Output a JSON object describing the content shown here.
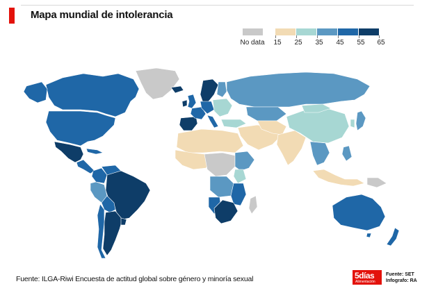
{
  "header": {
    "title": "Mapa mundial de intolerancia"
  },
  "legend": {
    "nodata_label": "No data",
    "nodata_color": "#c9c9c9",
    "bins": [
      {
        "from": "15",
        "to": "25",
        "color": "#f2dbb4"
      },
      {
        "from": "25",
        "to": "35",
        "color": "#a7d7d3"
      },
      {
        "from": "35",
        "to": "45",
        "color": "#5b98c2"
      },
      {
        "from": "45",
        "to": "55",
        "color": "#1f67a7"
      },
      {
        "from": "55",
        "to": "65",
        "color": "#0e3d68"
      }
    ],
    "ticks": [
      "15",
      "25",
      "35",
      "45",
      "55",
      "65"
    ]
  },
  "map": {
    "regions": [
      {
        "name": "greenland",
        "bin": "nodata"
      },
      {
        "name": "canada",
        "bin": "45-55"
      },
      {
        "name": "usa",
        "bin": "45-55"
      },
      {
        "name": "mexico",
        "bin": "55-65"
      },
      {
        "name": "central-america",
        "bin": "45-55"
      },
      {
        "name": "colombia",
        "bin": "45-55"
      },
      {
        "name": "venezuela",
        "bin": "45-55"
      },
      {
        "name": "peru",
        "bin": "35-45"
      },
      {
        "name": "brazil",
        "bin": "55-65"
      },
      {
        "name": "bolivia",
        "bin": "45-55"
      },
      {
        "name": "paraguay",
        "bin": "45-55"
      },
      {
        "name": "argentina",
        "bin": "55-65"
      },
      {
        "name": "chile",
        "bin": "45-55"
      },
      {
        "name": "uruguay",
        "bin": "55-65"
      },
      {
        "name": "iberia",
        "bin": "55-65"
      },
      {
        "name": "france",
        "bin": "45-55"
      },
      {
        "name": "western-europe",
        "bin": "45-55"
      },
      {
        "name": "uk",
        "bin": "45-55"
      },
      {
        "name": "ireland",
        "bin": "55-65"
      },
      {
        "name": "scandinavia",
        "bin": "55-65"
      },
      {
        "name": "finland",
        "bin": "35-45"
      },
      {
        "name": "eastern-europe",
        "bin": "25-35"
      },
      {
        "name": "russia",
        "bin": "35-45"
      },
      {
        "name": "kazakhstan",
        "bin": "35-45"
      },
      {
        "name": "turkey",
        "bin": "25-35"
      },
      {
        "name": "middle-east",
        "bin": "15-25"
      },
      {
        "name": "north-africa",
        "bin": "15-25"
      },
      {
        "name": "west-africa",
        "bin": "15-25"
      },
      {
        "name": "central-africa",
        "bin": "nodata"
      },
      {
        "name": "east-africa",
        "bin": "35-45"
      },
      {
        "name": "kenya",
        "bin": "25-35"
      },
      {
        "name": "angola-zambia",
        "bin": "35-45"
      },
      {
        "name": "mozambique",
        "bin": "45-55"
      },
      {
        "name": "namibia",
        "bin": "45-55"
      },
      {
        "name": "south-africa",
        "bin": "55-65"
      },
      {
        "name": "madagascar",
        "bin": "nodata"
      },
      {
        "name": "india",
        "bin": "15-25"
      },
      {
        "name": "china",
        "bin": "25-35"
      },
      {
        "name": "mongolia",
        "bin": "25-35"
      },
      {
        "name": "korea",
        "bin": "25-35"
      },
      {
        "name": "japan",
        "bin": "35-45"
      },
      {
        "name": "southeast-asia",
        "bin": "35-45"
      },
      {
        "name": "philippines",
        "bin": "35-45"
      },
      {
        "name": "indonesia",
        "bin": "15-25"
      },
      {
        "name": "papua",
        "bin": "nodata"
      },
      {
        "name": "australia",
        "bin": "45-55"
      },
      {
        "name": "new-zealand",
        "bin": "45-55"
      }
    ]
  },
  "footer": {
    "source": "Fuente: ILGA-Riwi Encuesta de actitud global sobre género y minoría sexual",
    "logo_main": "5días",
    "logo_sub": "Alimentación",
    "credit_source": "Fuente: SET",
    "credit_graphic": "Infografo: RA"
  }
}
